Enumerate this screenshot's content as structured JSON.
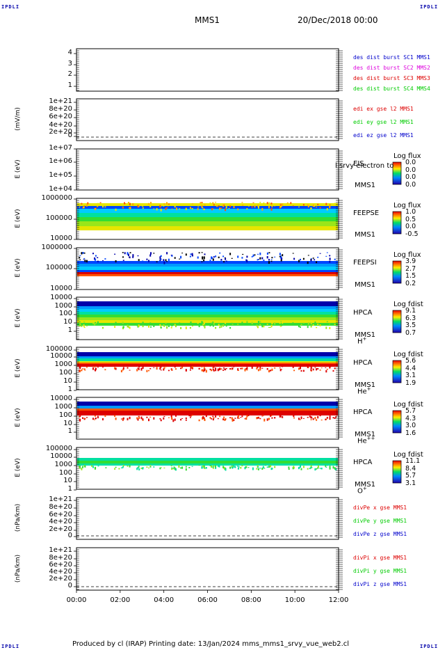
{
  "corners": {
    "tl": "IPDLI",
    "tr": "IPDLI",
    "bl": "IPDLI",
    "br": "IPDLI"
  },
  "header": {
    "mission": "MMS1",
    "date": "20/Dec/2018 00:00"
  },
  "footer": "Produced by cl (IRAP)   Printing date: 13/Jan/2024   mms_mms1_srvy_vue_web2.cl",
  "chart_data": [
    {
      "panel": "des-dist",
      "type": "line",
      "ylabel": "",
      "y_ticks": [
        "4",
        "3",
        "2",
        "1"
      ],
      "legend": [
        {
          "name": "des dist burst SC1 MMS1",
          "color": "#0000cc"
        },
        {
          "name": "des dist burst SC2 MMS2",
          "color": "#dd00dd"
        },
        {
          "name": "des dist burst SC3 MMS3",
          "color": "#dd0000"
        },
        {
          "name": "des dist burst SC4 MMS4",
          "color": "#00cc00"
        }
      ],
      "series": []
    },
    {
      "panel": "edi",
      "type": "line",
      "ylabel": "(mV/m)",
      "y_ticks": [
        "1e+21",
        "8e+20",
        "6e+20",
        "4e+20",
        "2e+20",
        "0"
      ],
      "legend": [
        {
          "name": "edi ex gse l2 MMS1",
          "color": "#dd0000"
        },
        {
          "name": "edi ey gse l2 MMS1",
          "color": "#00cc00"
        },
        {
          "name": "edi ez gse l2 MMS1",
          "color": "#0000cc"
        }
      ],
      "zero_line": true
    },
    {
      "panel": "eis",
      "type": "heatmap",
      "ylabel": "E (eV)",
      "y_ticks": [
        "1e+07",
        "1e+06",
        "1e+05",
        "1e+04"
      ],
      "instrument": "EIS",
      "spacecraft": "MMS1",
      "overlay_text": "l srvy electron to",
      "colorbar": {
        "title": "Log flux",
        "ticks": [
          "0.0",
          "0.0",
          "0.0",
          "0.0"
        ]
      }
    },
    {
      "panel": "feepse",
      "type": "heatmap",
      "ylabel": "E (eV)",
      "y_ticks": [
        "1000000",
        "100000",
        "10000"
      ],
      "instrument": "FEEPSE",
      "spacecraft": "MMS1",
      "colorbar": {
        "title": "Log flux",
        "ticks": [
          "1.0",
          "0.5",
          "0.0",
          "-0.5"
        ]
      }
    },
    {
      "panel": "feepsi",
      "type": "heatmap",
      "ylabel": "E (eV)",
      "y_ticks": [
        "1000000",
        "100000",
        "10000"
      ],
      "instrument": "FEEPSI",
      "spacecraft": "MMS1",
      "colorbar": {
        "title": "Log flux",
        "ticks": [
          "3.9",
          "2.7",
          "1.5",
          "0.2"
        ]
      }
    },
    {
      "panel": "hpca-h",
      "type": "heatmap",
      "ylabel": "E (eV)",
      "y_ticks": [
        "10000",
        "1000",
        "100",
        "10",
        "1"
      ],
      "instrument": "HPCA",
      "spacecraft": "MMS1",
      "species": "H",
      "charge": "+",
      "colorbar": {
        "title": "Log fdist",
        "ticks": [
          "9.1",
          "6.3",
          "3.5",
          "0.7"
        ]
      }
    },
    {
      "panel": "hpca-he",
      "type": "heatmap",
      "ylabel": "E (eV)",
      "y_ticks": [
        "100000",
        "10000",
        "1000",
        "100",
        "10",
        "1"
      ],
      "instrument": "HPCA",
      "spacecraft": "MMS1",
      "species": "He",
      "charge": "+",
      "colorbar": {
        "title": "Log fdist",
        "ticks": [
          "5.6",
          "4.4",
          "3.1",
          "1.9"
        ]
      }
    },
    {
      "panel": "hpca-he2",
      "type": "heatmap",
      "ylabel": "E (eV)",
      "y_ticks": [
        "10000",
        "1000",
        "100",
        "10",
        "1"
      ],
      "instrument": "HPCA",
      "spacecraft": "MMS1",
      "species": "He",
      "charge": "++",
      "colorbar": {
        "title": "Log fdist",
        "ticks": [
          "5.7",
          "4.3",
          "3.0",
          "1.6"
        ]
      }
    },
    {
      "panel": "hpca-o",
      "type": "heatmap",
      "ylabel": "E (eV)",
      "y_ticks": [
        "100000",
        "10000",
        "1000",
        "100",
        "10",
        "1"
      ],
      "instrument": "HPCA",
      "spacecraft": "MMS1",
      "species": "O",
      "charge": "+",
      "colorbar": {
        "title": "Log fdist",
        "ticks": [
          "11.1",
          "8.4",
          "5.7",
          "3.1"
        ]
      }
    },
    {
      "panel": "divpe",
      "type": "line",
      "ylabel": "(nPa/km)",
      "y_ticks": [
        "1e+21",
        "8e+20",
        "6e+20",
        "4e+20",
        "2e+20",
        "0"
      ],
      "legend": [
        {
          "name": "divPe x gse MMS1",
          "color": "#dd0000"
        },
        {
          "name": "divPe y gse MMS1",
          "color": "#00cc00"
        },
        {
          "name": "divPe z gse MMS1",
          "color": "#0000cc"
        }
      ],
      "zero_line": true
    },
    {
      "panel": "divpi",
      "type": "line",
      "ylabel": "(nPa/km)",
      "y_ticks": [
        "1e+21",
        "8e+20",
        "6e+20",
        "4e+20",
        "2e+20",
        "0"
      ],
      "legend": [
        {
          "name": "divPi x gse MMS1",
          "color": "#dd0000"
        },
        {
          "name": "divPi y gse MMS1",
          "color": "#00cc00"
        },
        {
          "name": "divPi z gse MMS1",
          "color": "#0000cc"
        }
      ],
      "zero_line": true
    }
  ],
  "x_axis": {
    "ticks": [
      "00:00",
      "02:00",
      "04:00",
      "06:00",
      "08:00",
      "10:00",
      "12:00"
    ]
  }
}
